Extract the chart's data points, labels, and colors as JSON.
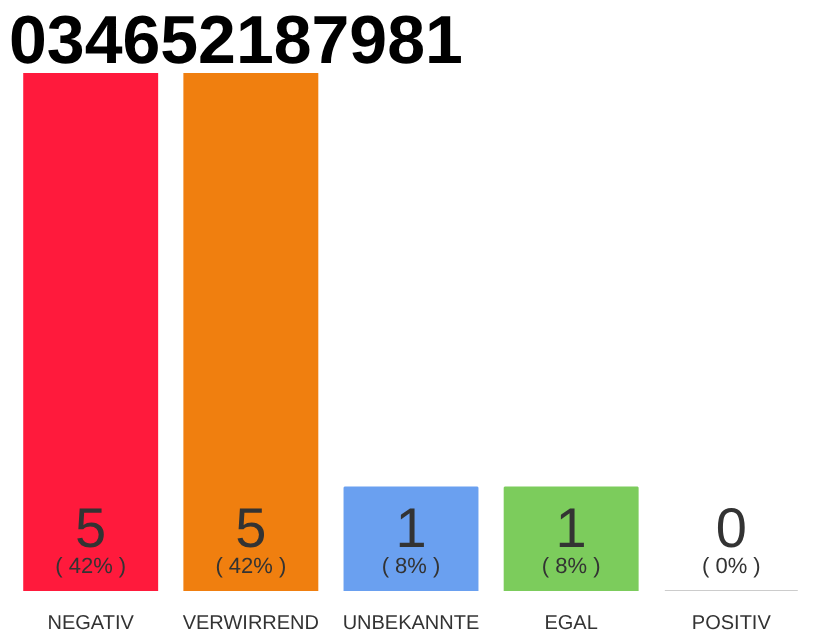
{
  "chart_data": {
    "type": "bar",
    "title": "034652187981",
    "categories": [
      "NEGATIV",
      "VERWIRREND",
      "UNBEKANNTE",
      "EGAL",
      "POSITIV"
    ],
    "values": [
      5,
      5,
      1,
      1,
      0
    ],
    "colors": [
      "#ff1a3c",
      "#f07f0f",
      "#6aa0f0",
      "#7ccc5c",
      "#cccccc"
    ],
    "value_labels": [
      "5\n( 42% )",
      "5\n( 42% )",
      "1\n( 8% )",
      "1\n( 8% )",
      "0\n( 0% )"
    ],
    "ylim": [
      0,
      5
    ],
    "grid": false
  }
}
